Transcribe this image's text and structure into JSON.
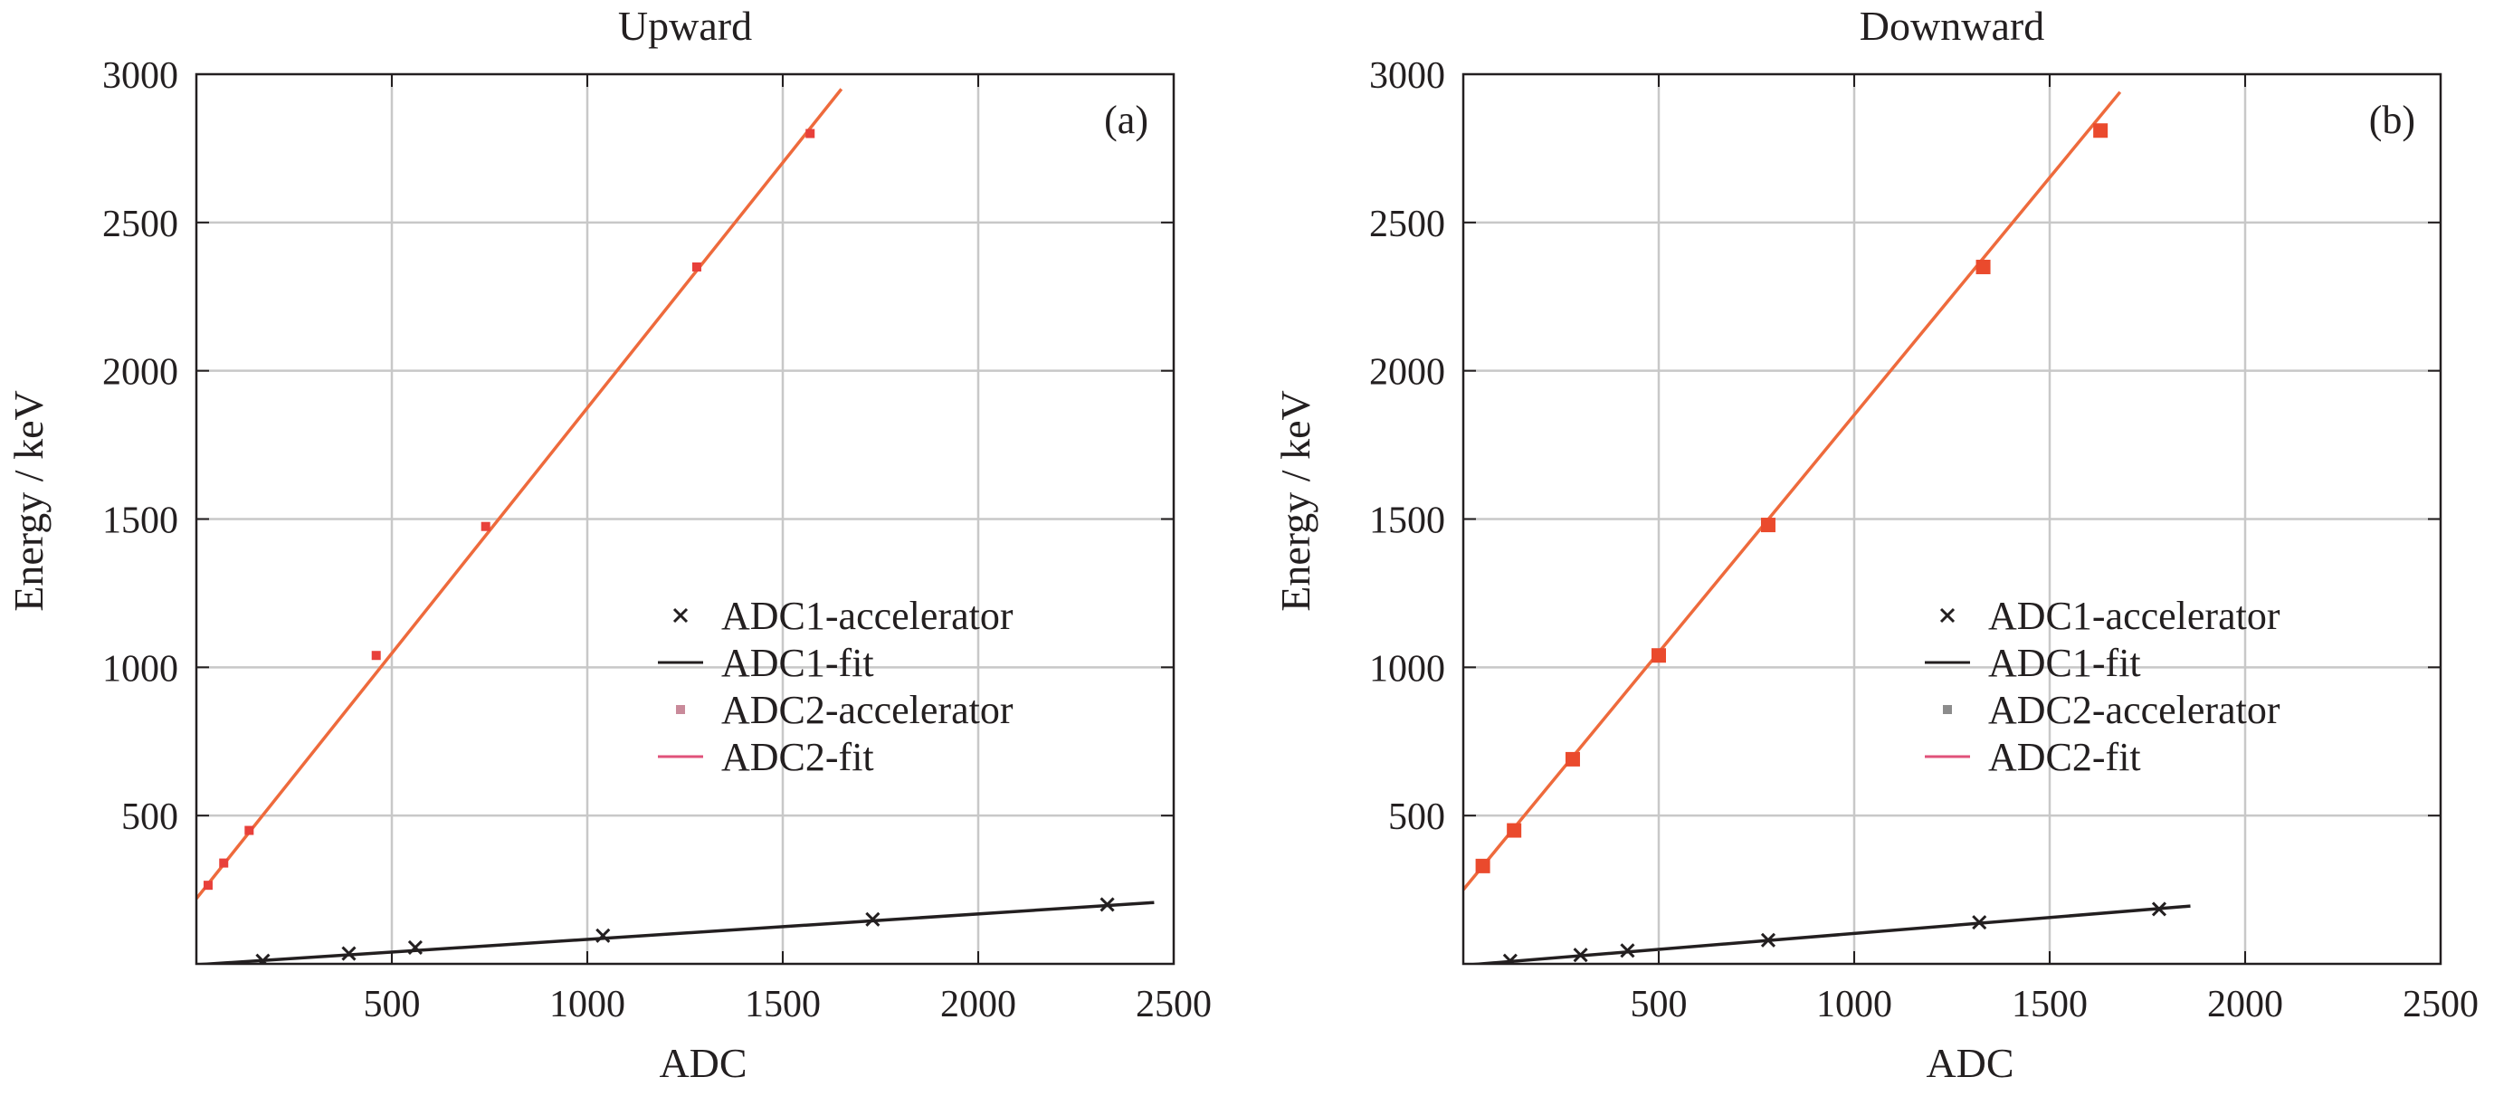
{
  "chart_data": [
    {
      "type": "scatter",
      "title": "Upward",
      "panel_label": "(a)",
      "xlabel": "ADC",
      "ylabel": "Energy / keV",
      "xlim": [
        0,
        2500
      ],
      "ylim": [
        0,
        3000
      ],
      "xticks": [
        500,
        1000,
        1500,
        2000,
        2500
      ],
      "yticks": [
        500,
        1000,
        1500,
        2000,
        2500,
        3000
      ],
      "grid": true,
      "legend_position": "right-middle",
      "series": [
        {
          "name": "ADC1-accelerator",
          "kind": "points",
          "marker": "cross",
          "color": "#231f20",
          "x": [
            170,
            390,
            560,
            1040,
            1730,
            2330
          ],
          "y": [
            10,
            35,
            55,
            95,
            150,
            200
          ]
        },
        {
          "name": "ADC1-fit",
          "kind": "line",
          "color": "#231f20",
          "x": [
            0,
            2450
          ],
          "y": [
            -3,
            207
          ]
        },
        {
          "name": "ADC2-accelerator",
          "kind": "points",
          "marker": "square",
          "color": "#e8403a",
          "x": [
            30,
            70,
            135,
            460,
            740,
            1280,
            1570
          ],
          "y": [
            265,
            340,
            450,
            1040,
            1475,
            2350,
            2800
          ]
        },
        {
          "name": "ADC2-fit",
          "kind": "line",
          "color": "#ee6a3c",
          "x": [
            0,
            1650
          ],
          "y": [
            220,
            2950
          ]
        }
      ]
    },
    {
      "type": "scatter",
      "title": "Downward",
      "panel_label": "(b)",
      "xlabel": "ADC",
      "ylabel": "Energy / keV",
      "xlim": [
        0,
        2500
      ],
      "ylim": [
        0,
        3000
      ],
      "xticks": [
        500,
        1000,
        1500,
        2000,
        2500
      ],
      "yticks": [
        500,
        1000,
        1500,
        2000,
        2500,
        3000
      ],
      "grid": true,
      "legend_position": "right-middle",
      "series": [
        {
          "name": "ADC1-accelerator",
          "kind": "points",
          "marker": "cross",
          "color": "#231f20",
          "x": [
            120,
            300,
            420,
            780,
            1320,
            1780
          ],
          "y": [
            10,
            30,
            45,
            80,
            140,
            185
          ]
        },
        {
          "name": "ADC1-fit",
          "kind": "line",
          "color": "#231f20",
          "x": [
            0,
            1860
          ],
          "y": [
            -5,
            195
          ]
        },
        {
          "name": "ADC2-accelerator",
          "kind": "points",
          "marker": "square",
          "color": "#ea4a2d",
          "x": [
            50,
            130,
            280,
            500,
            780,
            1330,
            1630
          ],
          "y": [
            330,
            450,
            690,
            1040,
            1480,
            2350,
            2810
          ]
        },
        {
          "name": "ADC2-fit",
          "kind": "line",
          "color": "#ee6a3c",
          "x": [
            0,
            1680
          ],
          "y": [
            250,
            2940
          ]
        }
      ]
    }
  ]
}
